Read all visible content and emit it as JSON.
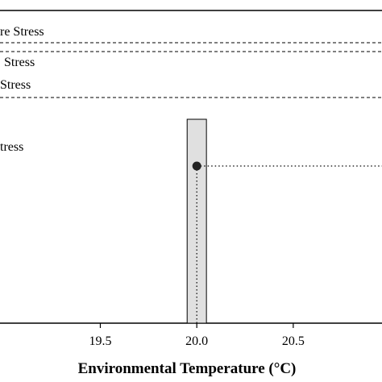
{
  "chart_data": {
    "type": "line",
    "xlabel": "Environmental Temperature (°C)",
    "xlim": [
      18.98,
      20.96
    ],
    "x_ticks": [
      19.5,
      20.0,
      20.5
    ],
    "x_tick_labels": [
      "19.5",
      "20.0",
      "20.5"
    ],
    "reference_lines": [
      {
        "label": "re Stress",
        "style": "dashed"
      },
      {
        "label": "Stress",
        "style": "dashed"
      },
      {
        "label": "Stress",
        "style": "dashed"
      }
    ],
    "region_label": "tress",
    "band": {
      "x_from": 19.95,
      "x_to": 20.05,
      "fill": "#e0e0e0"
    },
    "point": {
      "x": 20.0,
      "label_style": "dotted guides"
    },
    "grid": false
  },
  "colors": {
    "axis": "#000000",
    "band_fill": "#e0e0e0",
    "point": "#222222"
  }
}
